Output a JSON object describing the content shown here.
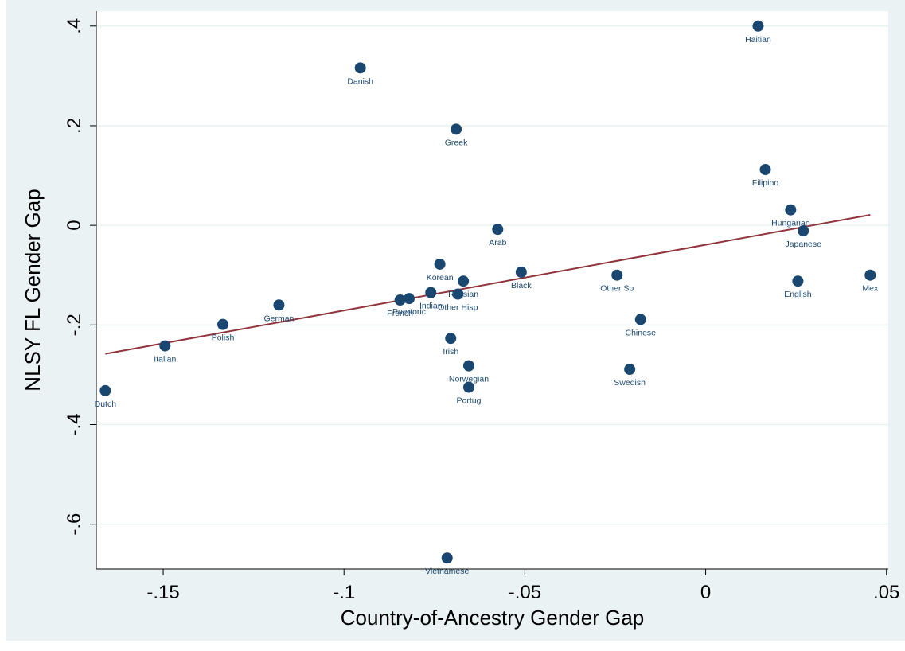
{
  "chart_data": {
    "type": "scatter",
    "xlabel": "Country-of-Ancestry Gender Gap",
    "ylabel": "NLSY FL Gender Gap",
    "xlim": [
      -0.1685,
      0.0505
    ],
    "ylim": [
      -0.69,
      0.43
    ],
    "x_ticks": [
      {
        "value": -0.15,
        "label": "-.15"
      },
      {
        "value": -0.1,
        "label": "-.1"
      },
      {
        "value": -0.05,
        "label": "-.05"
      },
      {
        "value": 0,
        "label": "0"
      },
      {
        "value": 0.05,
        "label": ".05"
      }
    ],
    "y_ticks": [
      {
        "value": 0.4,
        "label": ".4"
      },
      {
        "value": 0.2,
        "label": ".2"
      },
      {
        "value": 0,
        "label": "0"
      },
      {
        "value": -0.2,
        "label": "-.2"
      },
      {
        "value": -0.4,
        "label": "-.4"
      },
      {
        "value": -0.6,
        "label": "-.6"
      }
    ],
    "grid": "horizontal",
    "marker_color": "#1a476f",
    "fit_line_color": "#90353b",
    "fit_line": {
      "x": [
        -0.166,
        0.0455
      ],
      "y": [
        -0.258,
        0.021
      ]
    },
    "points": [
      {
        "label": "Dutch",
        "x": -0.166,
        "y": -0.332
      },
      {
        "label": "Italian",
        "x": -0.1495,
        "y": -0.242
      },
      {
        "label": "Polish",
        "x": -0.1335,
        "y": -0.199
      },
      {
        "label": "German",
        "x": -0.118,
        "y": -0.16
      },
      {
        "label": "Danish",
        "x": -0.0955,
        "y": 0.316
      },
      {
        "label": "French",
        "x": -0.0845,
        "y": -0.15
      },
      {
        "label": "Puertoric",
        "x": -0.082,
        "y": -0.147
      },
      {
        "label": "Indian",
        "x": -0.076,
        "y": -0.135
      },
      {
        "label": "Korean",
        "x": -0.0735,
        "y": -0.078
      },
      {
        "label": "Vietnamese",
        "x": -0.0715,
        "y": -0.668
      },
      {
        "label": "Irish",
        "x": -0.0705,
        "y": -0.227
      },
      {
        "label": "Greek",
        "x": -0.069,
        "y": 0.193
      },
      {
        "label": "Other Hisp",
        "x": -0.0685,
        "y": -0.138
      },
      {
        "label": "Russian",
        "x": -0.067,
        "y": -0.112
      },
      {
        "label": "Norwegian",
        "x": -0.0655,
        "y": -0.282
      },
      {
        "label": "Portug",
        "x": -0.0655,
        "y": -0.325
      },
      {
        "label": "Arab",
        "x": -0.0575,
        "y": -0.008
      },
      {
        "label": "Black",
        "x": -0.051,
        "y": -0.094
      },
      {
        "label": "Other Sp",
        "x": -0.0245,
        "y": -0.1
      },
      {
        "label": "Swedish",
        "x": -0.021,
        "y": -0.289
      },
      {
        "label": "Chinese",
        "x": -0.018,
        "y": -0.189
      },
      {
        "label": "Haitian",
        "x": 0.0145,
        "y": 0.4
      },
      {
        "label": "Filipino",
        "x": 0.0165,
        "y": 0.112
      },
      {
        "label": "Hungarian",
        "x": 0.0235,
        "y": 0.031
      },
      {
        "label": "English",
        "x": 0.0255,
        "y": -0.112
      },
      {
        "label": "Japanese",
        "x": 0.027,
        "y": -0.011
      },
      {
        "label": "Mex",
        "x": 0.0455,
        "y": -0.1
      }
    ]
  }
}
